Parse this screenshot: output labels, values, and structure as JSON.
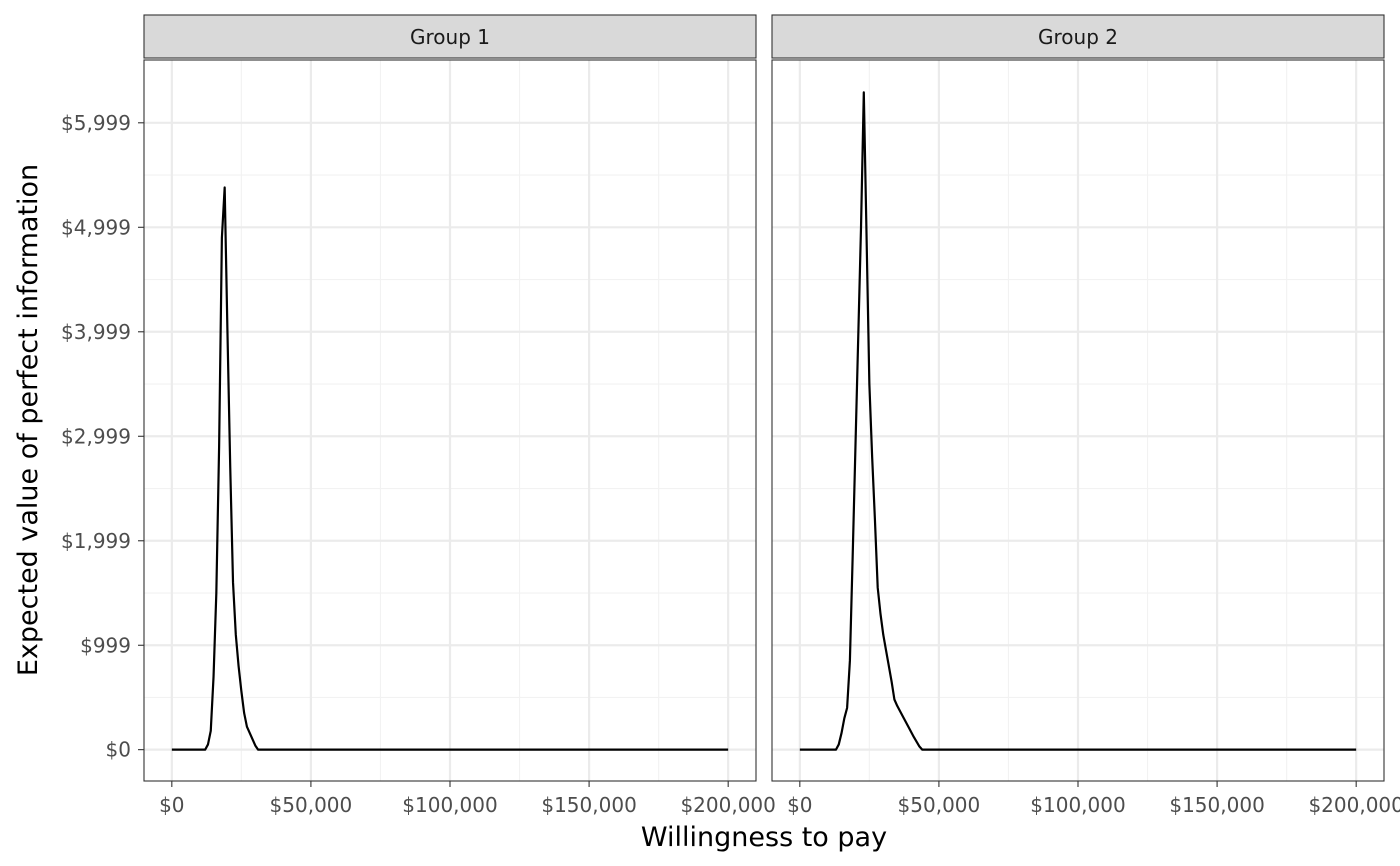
{
  "chart_data": {
    "type": "line",
    "facet_strips": [
      "Group 1",
      "Group 2"
    ],
    "xlabel": "Willingness to pay",
    "ylabel": "Expected value of perfect information",
    "xlim": [
      -10000,
      210000
    ],
    "ylim": [
      -300,
      6600
    ],
    "x_ticks": [
      0,
      50000,
      100000,
      150000,
      200000
    ],
    "x_tick_labels": [
      "$0",
      "$50,000",
      "$100,000",
      "$150,000",
      "$200,000"
    ],
    "y_ticks": [
      0,
      999,
      1999,
      2999,
      3999,
      4999,
      5999
    ],
    "y_tick_labels": [
      "$0",
      "$999",
      "$1,999",
      "$2,999",
      "$3,999",
      "$4,999",
      "$5,999"
    ],
    "grid": true,
    "line_color": "#000000",
    "panels": [
      {
        "strip": "Group 1",
        "x": [
          0,
          12000,
          13000,
          14000,
          15000,
          16000,
          17000,
          18000,
          19000,
          20000,
          21000,
          22000,
          23000,
          24000,
          25000,
          26000,
          27000,
          28000,
          30000,
          31000,
          32000,
          50000,
          100000,
          150000,
          200000
        ],
        "y": [
          0,
          0,
          50,
          180,
          700,
          1500,
          2900,
          4900,
          5380,
          4000,
          2700,
          1600,
          1100,
          800,
          560,
          350,
          220,
          160,
          40,
          0,
          0,
          0,
          0,
          0,
          0
        ]
      },
      {
        "strip": "Group 2",
        "x": [
          0,
          13000,
          14000,
          15000,
          16000,
          17000,
          18000,
          19000,
          20000,
          21000,
          22000,
          23000,
          24000,
          25000,
          26000,
          27000,
          28000,
          29000,
          30000,
          31000,
          32000,
          33000,
          34000,
          35000,
          37000,
          39000,
          41000,
          43000,
          44000,
          50000,
          100000,
          150000,
          200000
        ],
        "y": [
          0,
          0,
          50,
          160,
          300,
          400,
          850,
          1850,
          2900,
          3950,
          5000,
          6290,
          4900,
          3500,
          2800,
          2200,
          1550,
          1300,
          1100,
          950,
          800,
          650,
          480,
          420,
          320,
          220,
          120,
          30,
          0,
          0,
          0,
          0,
          0
        ]
      }
    ]
  }
}
